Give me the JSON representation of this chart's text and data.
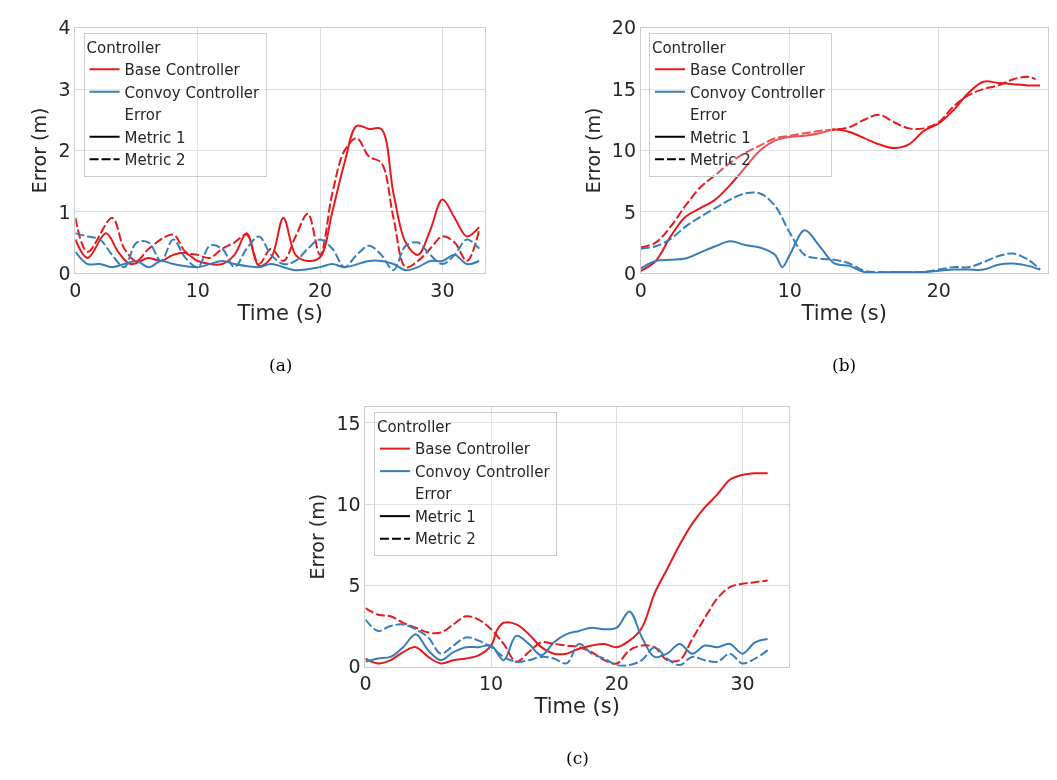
{
  "chart_data": [
    {
      "type": "line",
      "xlabel": "Time (s)",
      "ylabel": "Error (m)",
      "xlim": [
        0,
        33.5
      ],
      "ylim": [
        0,
        4
      ],
      "xticks": [
        0,
        10,
        20,
        30
      ],
      "yticks": [
        0,
        1,
        2,
        3,
        4
      ],
      "grid": true,
      "legend": "top left",
      "legend_title": "Controller",
      "annotations": [
        "(a)"
      ],
      "series": [
        {
          "name": "Base Controller",
          "color": "#e41a1c",
          "line_style": "solid",
          "x": [
            0,
            1,
            2.5,
            3.5,
            4.5,
            6,
            7,
            8,
            9,
            10,
            12,
            13,
            14,
            15,
            16,
            17,
            18,
            19,
            20,
            21,
            22,
            23,
            24,
            25,
            26,
            27,
            28,
            29,
            30,
            31,
            32,
            33
          ],
          "values": [
            0.55,
            0.25,
            0.65,
            0.35,
            0.15,
            0.25,
            0.2,
            0.3,
            0.33,
            0.2,
            0.15,
            0.3,
            0.65,
            0.12,
            0.25,
            0.9,
            0.3,
            0.2,
            0.26,
            1.0,
            1.8,
            2.4,
            2.35,
            2.35,
            1.3,
            0.5,
            0.3,
            0.7,
            1.2,
            0.9,
            0.6,
            0.75
          ]
        },
        {
          "name": "Convoy Controller",
          "color": "#377eb8",
          "line_style": "solid",
          "x": [
            0,
            1,
            2,
            3,
            4,
            5,
            6,
            7,
            8,
            10,
            12,
            13,
            15,
            16,
            18,
            20,
            21,
            22,
            24,
            25,
            26,
            27,
            28,
            29,
            30,
            31,
            32,
            33
          ],
          "values": [
            0.35,
            0.15,
            0.15,
            0.1,
            0.15,
            0.2,
            0.1,
            0.2,
            0.15,
            0.1,
            0.2,
            0.15,
            0.1,
            0.15,
            0.05,
            0.1,
            0.15,
            0.1,
            0.2,
            0.2,
            0.15,
            0.05,
            0.1,
            0.2,
            0.2,
            0.3,
            0.15,
            0.2
          ]
        },
        {
          "name": "Error",
          "x": [
            null
          ],
          "values": [
            null
          ]
        },
        {
          "name": "Metric 1",
          "color": "#000000",
          "line_style": "solid",
          "x": [
            null
          ],
          "values": [
            null
          ]
        },
        {
          "name": "Metric 2",
          "color": "#000000",
          "line_style": "dashed",
          "x": [
            null
          ],
          "values": [
            null
          ]
        },
        {
          "color": "#e41a1c",
          "line_style": "dashed",
          "x": [
            0,
            1,
            3,
            4,
            5,
            6,
            8,
            9,
            10,
            11,
            12,
            13,
            14,
            15,
            16,
            17,
            18,
            19,
            20,
            21,
            22,
            23,
            24,
            25,
            26,
            27,
            28,
            29,
            30,
            31,
            32,
            33
          ],
          "values": [
            0.9,
            0.35,
            0.9,
            0.4,
            0.2,
            0.4,
            0.63,
            0.35,
            0.3,
            0.25,
            0.4,
            0.5,
            0.63,
            0.15,
            0.4,
            0.2,
            0.6,
            0.97,
            0.3,
            1.3,
            2.0,
            2.2,
            1.9,
            1.8,
            0.9,
            0.1,
            0.2,
            0.4,
            0.6,
            0.5,
            0.2,
            0.7
          ]
        },
        {
          "color": "#377eb8",
          "line_style": "dashed",
          "x": [
            0,
            1,
            2,
            3,
            4,
            5,
            6,
            7,
            8,
            9,
            10,
            11,
            12,
            13,
            14,
            15,
            16,
            17,
            18,
            19,
            20,
            21,
            22,
            23,
            24,
            25,
            26,
            27,
            28,
            29,
            30,
            31,
            32,
            33
          ],
          "values": [
            0.65,
            0.6,
            0.55,
            0.3,
            0.1,
            0.5,
            0.5,
            0.2,
            0.55,
            0.25,
            0.1,
            0.45,
            0.4,
            0.1,
            0.4,
            0.6,
            0.3,
            0.15,
            0.2,
            0.4,
            0.55,
            0.4,
            0.1,
            0.3,
            0.45,
            0.3,
            0.05,
            0.45,
            0.5,
            0.3,
            0.15,
            0.3,
            0.55,
            0.4
          ]
        }
      ]
    },
    {
      "type": "line",
      "xlabel": "Time (s)",
      "ylabel": "Error (m)",
      "xlim": [
        0,
        27.3
      ],
      "ylim": [
        0,
        20
      ],
      "xticks": [
        0,
        10,
        20
      ],
      "yticks": [
        0,
        5,
        10,
        15,
        20
      ],
      "grid": true,
      "legend": "top left",
      "legend_title": "Controller",
      "annotations": [
        "(b)"
      ],
      "series": [
        {
          "name": "Base Controller",
          "color": "#e41a1c",
          "line_style": "solid",
          "x": [
            0,
            1,
            2,
            3,
            4,
            5,
            6,
            7,
            8,
            9,
            10,
            11,
            12,
            13,
            14,
            15,
            16,
            17,
            18,
            19,
            20,
            21,
            22,
            23,
            24,
            25,
            26,
            26.8
          ],
          "values": [
            0.2,
            1.0,
            3,
            4.6,
            5.3,
            6.0,
            7.2,
            8.6,
            10.0,
            10.8,
            11.1,
            11.2,
            11.4,
            11.7,
            11.5,
            11.0,
            10.5,
            10.2,
            10.5,
            11.6,
            12.2,
            13.3,
            14.7,
            15.6,
            15.5,
            15.4,
            15.3,
            15.3
          ]
        },
        {
          "name": "Convoy Controller",
          "color": "#377eb8",
          "line_style": "solid",
          "x": [
            0,
            1,
            2,
            3,
            4,
            5,
            6,
            7,
            8,
            9,
            9.5,
            10,
            11,
            12,
            13,
            14,
            15,
            17,
            19,
            20,
            21,
            22,
            23,
            24,
            25,
            26,
            26.8
          ],
          "values": [
            0.4,
            1.0,
            1.1,
            1.2,
            1.7,
            2.2,
            2.6,
            2.3,
            2.1,
            1.5,
            0.5,
            1.5,
            3.5,
            2.2,
            0.8,
            0.6,
            0.1,
            0.1,
            0.1,
            0.2,
            0.3,
            0.3,
            0.3,
            0.7,
            0.8,
            0.6,
            0.3
          ]
        },
        {
          "name": "Error",
          "x": [
            null
          ],
          "values": [
            null
          ]
        },
        {
          "name": "Metric 1",
          "color": "#000000",
          "line_style": "solid",
          "x": [
            null
          ],
          "values": [
            null
          ]
        },
        {
          "name": "Metric 2",
          "color": "#000000",
          "line_style": "dashed",
          "x": [
            null
          ],
          "values": [
            null
          ]
        },
        {
          "color": "#e41a1c",
          "line_style": "dashed",
          "x": [
            0,
            1,
            2,
            3,
            4,
            5,
            6,
            7,
            8,
            9,
            10,
            11,
            12,
            13,
            14,
            15,
            16,
            17,
            18,
            19,
            20,
            21,
            22,
            23,
            24,
            25,
            26,
            26.5
          ],
          "values": [
            2.1,
            2.5,
            3.8,
            5.5,
            7.0,
            8.0,
            9.0,
            9.8,
            10.4,
            11.0,
            11.2,
            11.4,
            11.6,
            11.7,
            11.9,
            12.5,
            12.9,
            12.3,
            11.8,
            11.8,
            12.3,
            13.6,
            14.5,
            15.0,
            15.3,
            15.8,
            16.0,
            15.8
          ]
        },
        {
          "color": "#377eb8",
          "line_style": "dashed",
          "x": [
            0,
            1,
            2,
            3,
            4,
            5,
            6,
            7,
            8,
            9,
            10,
            11,
            12,
            13,
            14,
            15,
            16,
            18,
            19,
            20,
            21,
            22,
            23,
            24,
            25,
            26,
            26.8
          ],
          "values": [
            2.0,
            2.2,
            2.8,
            3.8,
            4.6,
            5.3,
            6.0,
            6.5,
            6.5,
            5.5,
            3.3,
            1.5,
            1.2,
            1.1,
            0.8,
            0.2,
            0.1,
            0.1,
            0.1,
            0.3,
            0.5,
            0.5,
            0.9,
            1.4,
            1.6,
            1.1,
            0.3
          ]
        }
      ]
    },
    {
      "type": "line",
      "xlabel": "Time (s)",
      "ylabel": "Error (m)",
      "xlim": [
        0,
        33.7
      ],
      "ylim": [
        0,
        16
      ],
      "xticks": [
        0,
        10,
        20,
        30
      ],
      "yticks": [
        0,
        5,
        10,
        15
      ],
      "grid": true,
      "legend": "top left",
      "legend_title": "Controller",
      "annotations": [
        "(c)"
      ],
      "series": [
        {
          "name": "Base Controller",
          "color": "#e41a1c",
          "line_style": "solid",
          "x": [
            0,
            1,
            2,
            3,
            4,
            5,
            6,
            7,
            8,
            9,
            10,
            10.5,
            11,
            12,
            13,
            14,
            15,
            16,
            17,
            18,
            19,
            20,
            21,
            22,
            23,
            24,
            25,
            26,
            27,
            28,
            29,
            30,
            31,
            32
          ],
          "values": [
            0.5,
            0.2,
            0.4,
            0.9,
            1.2,
            0.6,
            0.2,
            0.4,
            0.5,
            0.7,
            1.3,
            2.3,
            2.7,
            2.6,
            2.0,
            1.2,
            0.8,
            0.8,
            1.1,
            1.3,
            1.4,
            1.2,
            1.6,
            2.4,
            4.5,
            6.0,
            7.5,
            8.8,
            9.8,
            10.6,
            11.5,
            11.8,
            11.9,
            11.9
          ]
        },
        {
          "name": "Convoy Controller",
          "color": "#377eb8",
          "line_style": "solid",
          "x": [
            0,
            1,
            2,
            3,
            4,
            5,
            6,
            7,
            8,
            9,
            10,
            11,
            12,
            13,
            14,
            15,
            16,
            17,
            18,
            19,
            20,
            21,
            22,
            23,
            24,
            25,
            26,
            27,
            28,
            29,
            30,
            31,
            32
          ],
          "values": [
            0.3,
            0.5,
            0.6,
            1.2,
            2.0,
            1.0,
            0.4,
            0.9,
            1.2,
            1.2,
            1.3,
            0.4,
            1.9,
            1.4,
            0.7,
            1.5,
            2.0,
            2.2,
            2.4,
            2.3,
            2.4,
            3.4,
            1.8,
            0.6,
            0.8,
            1.4,
            0.8,
            1.3,
            1.2,
            1.4,
            0.8,
            1.5,
            1.7
          ]
        },
        {
          "name": "Error",
          "x": [
            null
          ],
          "values": [
            null
          ]
        },
        {
          "name": "Metric 1",
          "color": "#000000",
          "line_style": "solid",
          "x": [
            null
          ],
          "values": [
            null
          ]
        },
        {
          "name": "Metric 2",
          "color": "#000000",
          "line_style": "dashed",
          "x": [
            null
          ],
          "values": [
            null
          ]
        },
        {
          "color": "#e41a1c",
          "line_style": "dashed",
          "x": [
            0,
            1,
            2,
            3,
            4,
            5,
            6,
            7,
            8,
            9,
            10,
            11,
            12,
            13,
            14,
            15,
            16,
            17,
            18,
            19,
            20,
            21,
            22,
            23,
            24,
            25,
            26,
            27,
            28,
            29,
            30,
            31,
            32
          ],
          "values": [
            3.6,
            3.2,
            3.1,
            2.7,
            2.4,
            2.1,
            2.1,
            2.6,
            3.1,
            2.9,
            2.3,
            1.4,
            0.3,
            0.9,
            1.5,
            1.4,
            1.3,
            1.2,
            0.9,
            0.4,
            0.2,
            1.0,
            1.3,
            1.2,
            0.4,
            0.4,
            1.7,
            3.0,
            4.2,
            4.9,
            5.1,
            5.2,
            5.3
          ]
        },
        {
          "color": "#377eb8",
          "line_style": "dashed",
          "x": [
            0,
            1,
            2,
            3,
            4,
            5,
            6,
            7,
            8,
            9,
            10,
            11,
            12,
            13,
            14,
            15,
            16,
            17,
            18,
            19,
            20,
            21,
            22,
            23,
            24,
            25,
            26,
            27,
            28,
            29,
            30,
            31,
            32
          ],
          "values": [
            2.9,
            2.2,
            2.5,
            2.6,
            2.3,
            1.8,
            0.8,
            1.3,
            1.8,
            1.6,
            1.2,
            0.6,
            0.3,
            0.4,
            0.6,
            0.5,
            0.2,
            1.4,
            0.8,
            0.5,
            0.1,
            0.1,
            0.4,
            1.2,
            0.5,
            0.1,
            0.6,
            0.4,
            0.3,
            0.8,
            0.2,
            0.5,
            1.0
          ]
        }
      ]
    }
  ]
}
